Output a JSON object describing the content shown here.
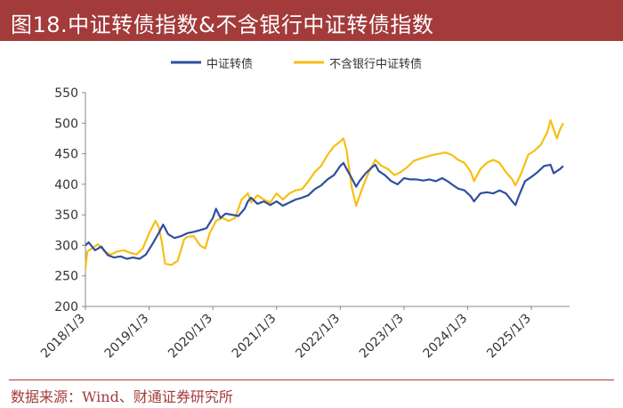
{
  "header": {
    "title": "图18.中证转债指数&不含银行中证转债指数"
  },
  "source": "数据来源：Wind、财通证券研究所",
  "colors": {
    "series1": "#2f4f9e",
    "series2": "#f6bf15",
    "title_bg": "#a33b3b"
  },
  "chart_data": {
    "type": "line",
    "title": "中证转债指数&不含银行中证转债指数",
    "xlabel": "",
    "ylabel": "",
    "ylim": [
      200,
      550
    ],
    "yticks": [
      "200",
      "250",
      "300",
      "350",
      "400",
      "450",
      "500",
      "550"
    ],
    "xlim": [
      2018.0,
      2025.6
    ],
    "xticks": [
      {
        "label": "2018/1/3",
        "x": 2018.0
      },
      {
        "label": "2019/1/3",
        "x": 2019.0
      },
      {
        "label": "2020/1/3",
        "x": 2020.0
      },
      {
        "label": "2021/1/3",
        "x": 2021.0
      },
      {
        "label": "2022/1/3",
        "x": 2022.0
      },
      {
        "label": "2023/1/3",
        "x": 2023.0
      },
      {
        "label": "2024/1/3",
        "x": 2024.0
      },
      {
        "label": "2025/1/3",
        "x": 2025.0
      }
    ],
    "legend_position": "top-center",
    "series": [
      {
        "name": "中证转债",
        "color": "#2f4f9e",
        "points": [
          [
            2018.0,
            300
          ],
          [
            2018.05,
            305
          ],
          [
            2018.15,
            292
          ],
          [
            2018.25,
            298
          ],
          [
            2018.35,
            284
          ],
          [
            2018.45,
            280
          ],
          [
            2018.55,
            282
          ],
          [
            2018.65,
            278
          ],
          [
            2018.75,
            280
          ],
          [
            2018.85,
            278
          ],
          [
            2018.95,
            285
          ],
          [
            2019.05,
            302
          ],
          [
            2019.15,
            320
          ],
          [
            2019.22,
            334
          ],
          [
            2019.3,
            318
          ],
          [
            2019.4,
            312
          ],
          [
            2019.5,
            315
          ],
          [
            2019.6,
            320
          ],
          [
            2019.7,
            322
          ],
          [
            2019.8,
            325
          ],
          [
            2019.9,
            328
          ],
          [
            2020.0,
            345
          ],
          [
            2020.05,
            360
          ],
          [
            2020.12,
            345
          ],
          [
            2020.2,
            352
          ],
          [
            2020.3,
            350
          ],
          [
            2020.4,
            348
          ],
          [
            2020.5,
            360
          ],
          [
            2020.55,
            372
          ],
          [
            2020.6,
            378
          ],
          [
            2020.7,
            368
          ],
          [
            2020.8,
            372
          ],
          [
            2020.9,
            366
          ],
          [
            2021.0,
            372
          ],
          [
            2021.1,
            365
          ],
          [
            2021.2,
            370
          ],
          [
            2021.3,
            375
          ],
          [
            2021.4,
            378
          ],
          [
            2021.5,
            382
          ],
          [
            2021.6,
            392
          ],
          [
            2021.7,
            398
          ],
          [
            2021.8,
            408
          ],
          [
            2021.9,
            415
          ],
          [
            2022.0,
            430
          ],
          [
            2022.05,
            435
          ],
          [
            2022.1,
            425
          ],
          [
            2022.18,
            410
          ],
          [
            2022.25,
            396
          ],
          [
            2022.3,
            405
          ],
          [
            2022.4,
            418
          ],
          [
            2022.5,
            428
          ],
          [
            2022.55,
            432
          ],
          [
            2022.6,
            422
          ],
          [
            2022.7,
            415
          ],
          [
            2022.8,
            405
          ],
          [
            2022.9,
            400
          ],
          [
            2023.0,
            410
          ],
          [
            2023.1,
            408
          ],
          [
            2023.2,
            408
          ],
          [
            2023.3,
            406
          ],
          [
            2023.4,
            408
          ],
          [
            2023.5,
            405
          ],
          [
            2023.6,
            410
          ],
          [
            2023.7,
            404
          ],
          [
            2023.75,
            400
          ],
          [
            2023.85,
            393
          ],
          [
            2023.95,
            390
          ],
          [
            2024.05,
            380
          ],
          [
            2024.1,
            372
          ],
          [
            2024.2,
            385
          ],
          [
            2024.3,
            387
          ],
          [
            2024.4,
            385
          ],
          [
            2024.5,
            390
          ],
          [
            2024.6,
            385
          ],
          [
            2024.7,
            372
          ],
          [
            2024.75,
            366
          ],
          [
            2024.8,
            380
          ],
          [
            2024.9,
            405
          ],
          [
            2025.0,
            412
          ],
          [
            2025.1,
            420
          ],
          [
            2025.2,
            430
          ],
          [
            2025.3,
            432
          ],
          [
            2025.35,
            418
          ],
          [
            2025.45,
            425
          ],
          [
            2025.5,
            430
          ]
        ]
      },
      {
        "name": "不含银行中证转债",
        "color": "#f6bf15",
        "points": [
          [
            2018.0,
            262
          ],
          [
            2018.03,
            290
          ],
          [
            2018.1,
            295
          ],
          [
            2018.2,
            302
          ],
          [
            2018.3,
            290
          ],
          [
            2018.4,
            285
          ],
          [
            2018.5,
            290
          ],
          [
            2018.6,
            292
          ],
          [
            2018.7,
            288
          ],
          [
            2018.8,
            285
          ],
          [
            2018.9,
            295
          ],
          [
            2019.0,
            320
          ],
          [
            2019.1,
            340
          ],
          [
            2019.15,
            330
          ],
          [
            2019.2,
            305
          ],
          [
            2019.25,
            270
          ],
          [
            2019.35,
            268
          ],
          [
            2019.45,
            275
          ],
          [
            2019.55,
            310
          ],
          [
            2019.6,
            314
          ],
          [
            2019.7,
            315
          ],
          [
            2019.8,
            300
          ],
          [
            2019.88,
            295
          ],
          [
            2019.95,
            320
          ],
          [
            2020.05,
            340
          ],
          [
            2020.15,
            345
          ],
          [
            2020.25,
            340
          ],
          [
            2020.35,
            345
          ],
          [
            2020.45,
            375
          ],
          [
            2020.55,
            385
          ],
          [
            2020.6,
            370
          ],
          [
            2020.7,
            382
          ],
          [
            2020.8,
            375
          ],
          [
            2020.9,
            370
          ],
          [
            2021.0,
            385
          ],
          [
            2021.1,
            375
          ],
          [
            2021.2,
            385
          ],
          [
            2021.3,
            390
          ],
          [
            2021.4,
            392
          ],
          [
            2021.5,
            405
          ],
          [
            2021.6,
            420
          ],
          [
            2021.7,
            430
          ],
          [
            2021.8,
            448
          ],
          [
            2021.9,
            462
          ],
          [
            2022.0,
            470
          ],
          [
            2022.05,
            475
          ],
          [
            2022.1,
            455
          ],
          [
            2022.18,
            395
          ],
          [
            2022.25,
            365
          ],
          [
            2022.35,
            395
          ],
          [
            2022.45,
            420
          ],
          [
            2022.55,
            440
          ],
          [
            2022.65,
            430
          ],
          [
            2022.75,
            425
          ],
          [
            2022.85,
            415
          ],
          [
            2022.95,
            420
          ],
          [
            2023.05,
            428
          ],
          [
            2023.15,
            438
          ],
          [
            2023.25,
            442
          ],
          [
            2023.35,
            445
          ],
          [
            2023.45,
            448
          ],
          [
            2023.55,
            450
          ],
          [
            2023.65,
            452
          ],
          [
            2023.75,
            448
          ],
          [
            2023.85,
            440
          ],
          [
            2023.95,
            435
          ],
          [
            2024.05,
            420
          ],
          [
            2024.1,
            405
          ],
          [
            2024.2,
            425
          ],
          [
            2024.3,
            435
          ],
          [
            2024.4,
            440
          ],
          [
            2024.5,
            435
          ],
          [
            2024.6,
            420
          ],
          [
            2024.7,
            408
          ],
          [
            2024.75,
            398
          ],
          [
            2024.85,
            420
          ],
          [
            2024.95,
            448
          ],
          [
            2025.05,
            455
          ],
          [
            2025.15,
            465
          ],
          [
            2025.25,
            485
          ],
          [
            2025.3,
            505
          ],
          [
            2025.35,
            490
          ],
          [
            2025.4,
            475
          ],
          [
            2025.45,
            490
          ],
          [
            2025.5,
            500
          ]
        ]
      }
    ]
  }
}
